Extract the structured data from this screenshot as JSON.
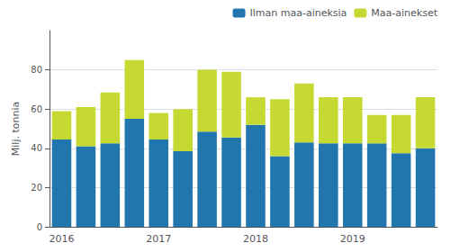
{
  "chart_data": {
    "type": "bar",
    "stacked": true,
    "ylabel": "Milj. tonnia",
    "categories": [
      "2016",
      null,
      null,
      null,
      "2017",
      null,
      null,
      null,
      "2018",
      null,
      null,
      null,
      "2019",
      null,
      null,
      null
    ],
    "series": [
      {
        "name": "Ilman maa-aineksia",
        "color": "#2176AE",
        "values": [
          44.5,
          41.0,
          42.5,
          55.0,
          44.5,
          38.5,
          48.5,
          45.5,
          52.0,
          36.0,
          43.0,
          42.5,
          42.5,
          42.5,
          37.5,
          40.0
        ]
      },
      {
        "name": "Maa-ainekset",
        "color": "#C5D932",
        "values": [
          14.5,
          20.0,
          26.0,
          30.0,
          13.5,
          21.5,
          31.5,
          33.5,
          14.0,
          29.0,
          30.0,
          23.5,
          23.5,
          14.5,
          19.5,
          26.0
        ]
      }
    ],
    "ylim": [
      0,
      100
    ],
    "yticks": [
      0,
      20,
      40,
      60,
      80
    ],
    "grid": true,
    "legend": "upper right"
  }
}
